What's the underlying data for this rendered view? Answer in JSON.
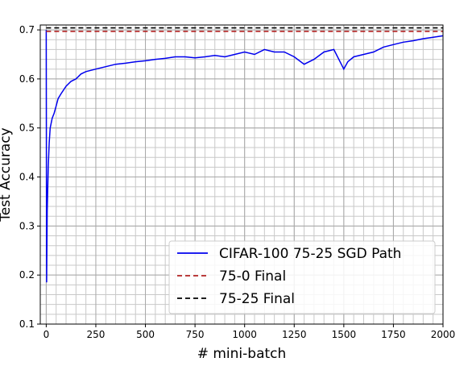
{
  "chart_data": {
    "type": "line",
    "title": "",
    "xlabel": "# mini-batch",
    "ylabel": "Test Accuracy",
    "xlim": [
      -30,
      2000
    ],
    "ylim": [
      0.1,
      0.71
    ],
    "xticks": [
      0,
      250,
      500,
      750,
      1000,
      1250,
      1500,
      1750,
      2000
    ],
    "yticks": [
      0.1,
      0.2,
      0.3,
      0.4,
      0.5,
      0.6,
      0.7
    ],
    "grid": true,
    "legend_position": "lower-right",
    "series": [
      {
        "name": "CIFAR-100 75-25 SGD Path",
        "style": "solid",
        "color": "#0000ee",
        "x": [
          0,
          2,
          5,
          10,
          15,
          20,
          30,
          40,
          50,
          60,
          75,
          100,
          125,
          150,
          175,
          200,
          250,
          300,
          350,
          400,
          450,
          500,
          550,
          600,
          650,
          700,
          750,
          800,
          850,
          900,
          950,
          1000,
          1050,
          1100,
          1150,
          1200,
          1250,
          1300,
          1350,
          1400,
          1450,
          1500,
          1520,
          1550,
          1600,
          1650,
          1700,
          1750,
          1800,
          1850,
          1900,
          1950,
          2000
        ],
        "y": [
          0.7,
          0.185,
          0.33,
          0.42,
          0.47,
          0.5,
          0.52,
          0.53,
          0.545,
          0.56,
          0.57,
          0.585,
          0.595,
          0.6,
          0.61,
          0.615,
          0.62,
          0.625,
          0.63,
          0.632,
          0.635,
          0.637,
          0.64,
          0.642,
          0.645,
          0.645,
          0.643,
          0.645,
          0.648,
          0.645,
          0.65,
          0.655,
          0.65,
          0.66,
          0.655,
          0.655,
          0.645,
          0.63,
          0.64,
          0.655,
          0.66,
          0.62,
          0.635,
          0.645,
          0.65,
          0.655,
          0.665,
          0.67,
          0.675,
          0.678,
          0.682,
          0.685,
          0.688
        ]
      },
      {
        "name": "75-0 Final",
        "style": "dashed",
        "color": "#b22222",
        "x": [
          0,
          2000
        ],
        "y": [
          0.697,
          0.697
        ]
      },
      {
        "name": "75-25 Final",
        "style": "dashed",
        "color": "#000000",
        "x": [
          0,
          2000
        ],
        "y": [
          0.704,
          0.704
        ]
      }
    ]
  }
}
